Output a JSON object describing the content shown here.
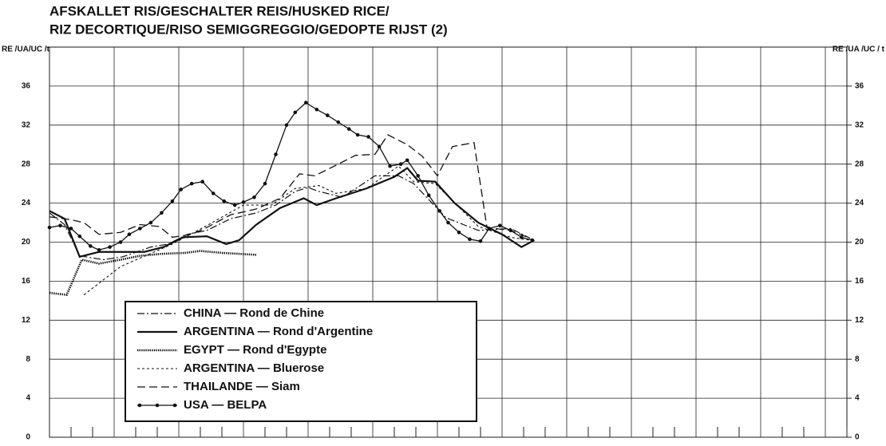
{
  "chart_data": {
    "type": "line",
    "title": [
      "AFSKALLET RIS/GESCHALTER REIS/HUSKED RICE/",
      "RIZ DECORTIQUE/RISO SEMIGGREGGIO/GEDOPTE RIJST (2)"
    ],
    "y_label": "RE /UA/UC /t",
    "y2_label": "RE /UA /UC / t",
    "xlim": [
      0,
      37
    ],
    "xticks": [
      0,
      1,
      2,
      3,
      4,
      5,
      6,
      7,
      8,
      9,
      10,
      11,
      12,
      13,
      14,
      15,
      16,
      17,
      18,
      19,
      20,
      21,
      22,
      23,
      24,
      25,
      26,
      27,
      28,
      29,
      30,
      31,
      32,
      33,
      34,
      35,
      36,
      37
    ],
    "xgrid_every": 3,
    "ylim": [
      0,
      40
    ],
    "yticks": [
      0,
      4,
      8,
      12,
      16,
      20,
      24,
      28,
      32,
      36
    ],
    "y2lim": [
      0,
      40
    ],
    "y2ticks": [
      0,
      4,
      8,
      12,
      16,
      20,
      24,
      28,
      32,
      36
    ],
    "grid": true,
    "legend": "lower left",
    "series": [
      {
        "name": "CHINA — Rond de Chine",
        "color": "#111",
        "style": "dashdot",
        "x": [
          0,
          0.7,
          1.4,
          2.5,
          3.4,
          4.7,
          5.5,
          6.4,
          7.3,
          8.4,
          9.6,
          10.5,
          11.4,
          12,
          12.5,
          13.6,
          15.1,
          16.2,
          16.9,
          18.4,
          19.9,
          21.4,
          22.3
        ],
        "values": [
          23,
          21.8,
          18.6,
          18.2,
          18.5,
          19.5,
          19.8,
          20.8,
          21.2,
          22.4,
          23,
          23.8,
          25.2,
          25.6,
          25.2,
          24.6,
          26.8,
          26.8,
          26,
          22.5,
          21.2,
          21.4,
          20.4
        ]
      },
      {
        "name": "ARGENTINA — Rond d'Argentine",
        "color": "#111",
        "style": "solid",
        "x": [
          0,
          0.7,
          1.4,
          2.3,
          4.4,
          5.3,
          6.2,
          7.3,
          8.2,
          8.8,
          9.6,
          10.7,
          11.8,
          12.4,
          13.3,
          14.7,
          16,
          16.6,
          17.1,
          17.9,
          18.8,
          19.9,
          21,
          21.9,
          22.5
        ],
        "values": [
          23.2,
          22.4,
          18.5,
          19,
          19,
          19.5,
          20.5,
          20.6,
          19.8,
          20.2,
          21.8,
          23.5,
          24.5,
          23.8,
          24.5,
          25.5,
          26.7,
          27.6,
          26.3,
          26.2,
          24,
          22,
          20.8,
          19.5,
          20.2
        ]
      },
      {
        "name": "EGYPT — Rond d'Egypte",
        "color": "#111",
        "style": "dotted",
        "x": [
          0,
          0.8,
          1.5,
          2.3,
          3.3,
          4.2,
          5.2,
          6.3,
          7,
          8,
          9.6
        ],
        "values": [
          14.8,
          14.6,
          18.2,
          17.8,
          18.2,
          18.6,
          18.8,
          18.9,
          19.1,
          18.9,
          18.7
        ]
      },
      {
        "name": "ARGENTINA — Bluerose",
        "color": "#111",
        "style": "dashed",
        "x": [
          1.6,
          3.3,
          5.7,
          7.3,
          9,
          10.3,
          11.4,
          12.5,
          13.3,
          14.7,
          16.2,
          16.9,
          17.9,
          19.9,
          21.4,
          22.3
        ],
        "values": [
          14.6,
          17.5,
          19.8,
          21.7,
          23.8,
          23.8,
          25.5,
          25.8,
          25,
          25.5,
          27.8,
          26.2,
          26,
          21.6,
          20.5,
          20.2
        ]
      },
      {
        "name": "THAILANDE — Siam",
        "color": "#111",
        "style": "longdash",
        "x": [
          0,
          1,
          1.6,
          2.3,
          3.3,
          4.2,
          5.1,
          5.7,
          6.6,
          7.3,
          8.4,
          9.6,
          10.7,
          11.6,
          12.3,
          13.4,
          14.2,
          15.1,
          15.7,
          16.6,
          17.3,
          18,
          18.7,
          19.7,
          20.3,
          21.4,
          22.3
        ],
        "values": [
          22.6,
          22.3,
          22,
          20.8,
          21,
          21.8,
          21.6,
          20.5,
          20.8,
          21.5,
          22.8,
          23.4,
          24.5,
          27,
          26.8,
          28,
          28.9,
          29,
          31,
          30,
          28.8,
          26.8,
          29.8,
          30.2,
          21.5,
          21.2,
          20.4
        ]
      },
      {
        "name": "USA — BELPA",
        "color": "#111",
        "style": "dots",
        "x": [
          0,
          0.5,
          1,
          1.4,
          1.9,
          2.3,
          2.8,
          3.3,
          3.7,
          4.2,
          4.7,
          5.2,
          5.7,
          6.1,
          6.6,
          7.1,
          7.6,
          8.1,
          8.6,
          9,
          9.5,
          10,
          10.5,
          11,
          11.4,
          11.9,
          12.4,
          12.9,
          13.4,
          13.9,
          14.3,
          14.8,
          15.3,
          15.8,
          16.3,
          16.6,
          17.1,
          17.6,
          18.1,
          18.5,
          19,
          19.5,
          20,
          20.4,
          20.9,
          21.4,
          21.9,
          22.4
        ],
        "values": [
          21.5,
          21.7,
          21.4,
          20.6,
          19.6,
          19.2,
          19.5,
          20,
          20.8,
          21.4,
          22,
          23,
          24.2,
          25.4,
          26,
          26.2,
          25,
          24.2,
          23.8,
          24.1,
          24.6,
          26,
          29,
          32,
          33.3,
          34.3,
          33.6,
          33,
          32.3,
          31.6,
          31,
          30.8,
          29.8,
          27.8,
          28,
          28.4,
          26.8,
          24.8,
          23.2,
          22,
          21,
          20.3,
          20.1,
          21.4,
          21.7,
          21.2,
          20.5,
          20.2
        ]
      }
    ]
  }
}
